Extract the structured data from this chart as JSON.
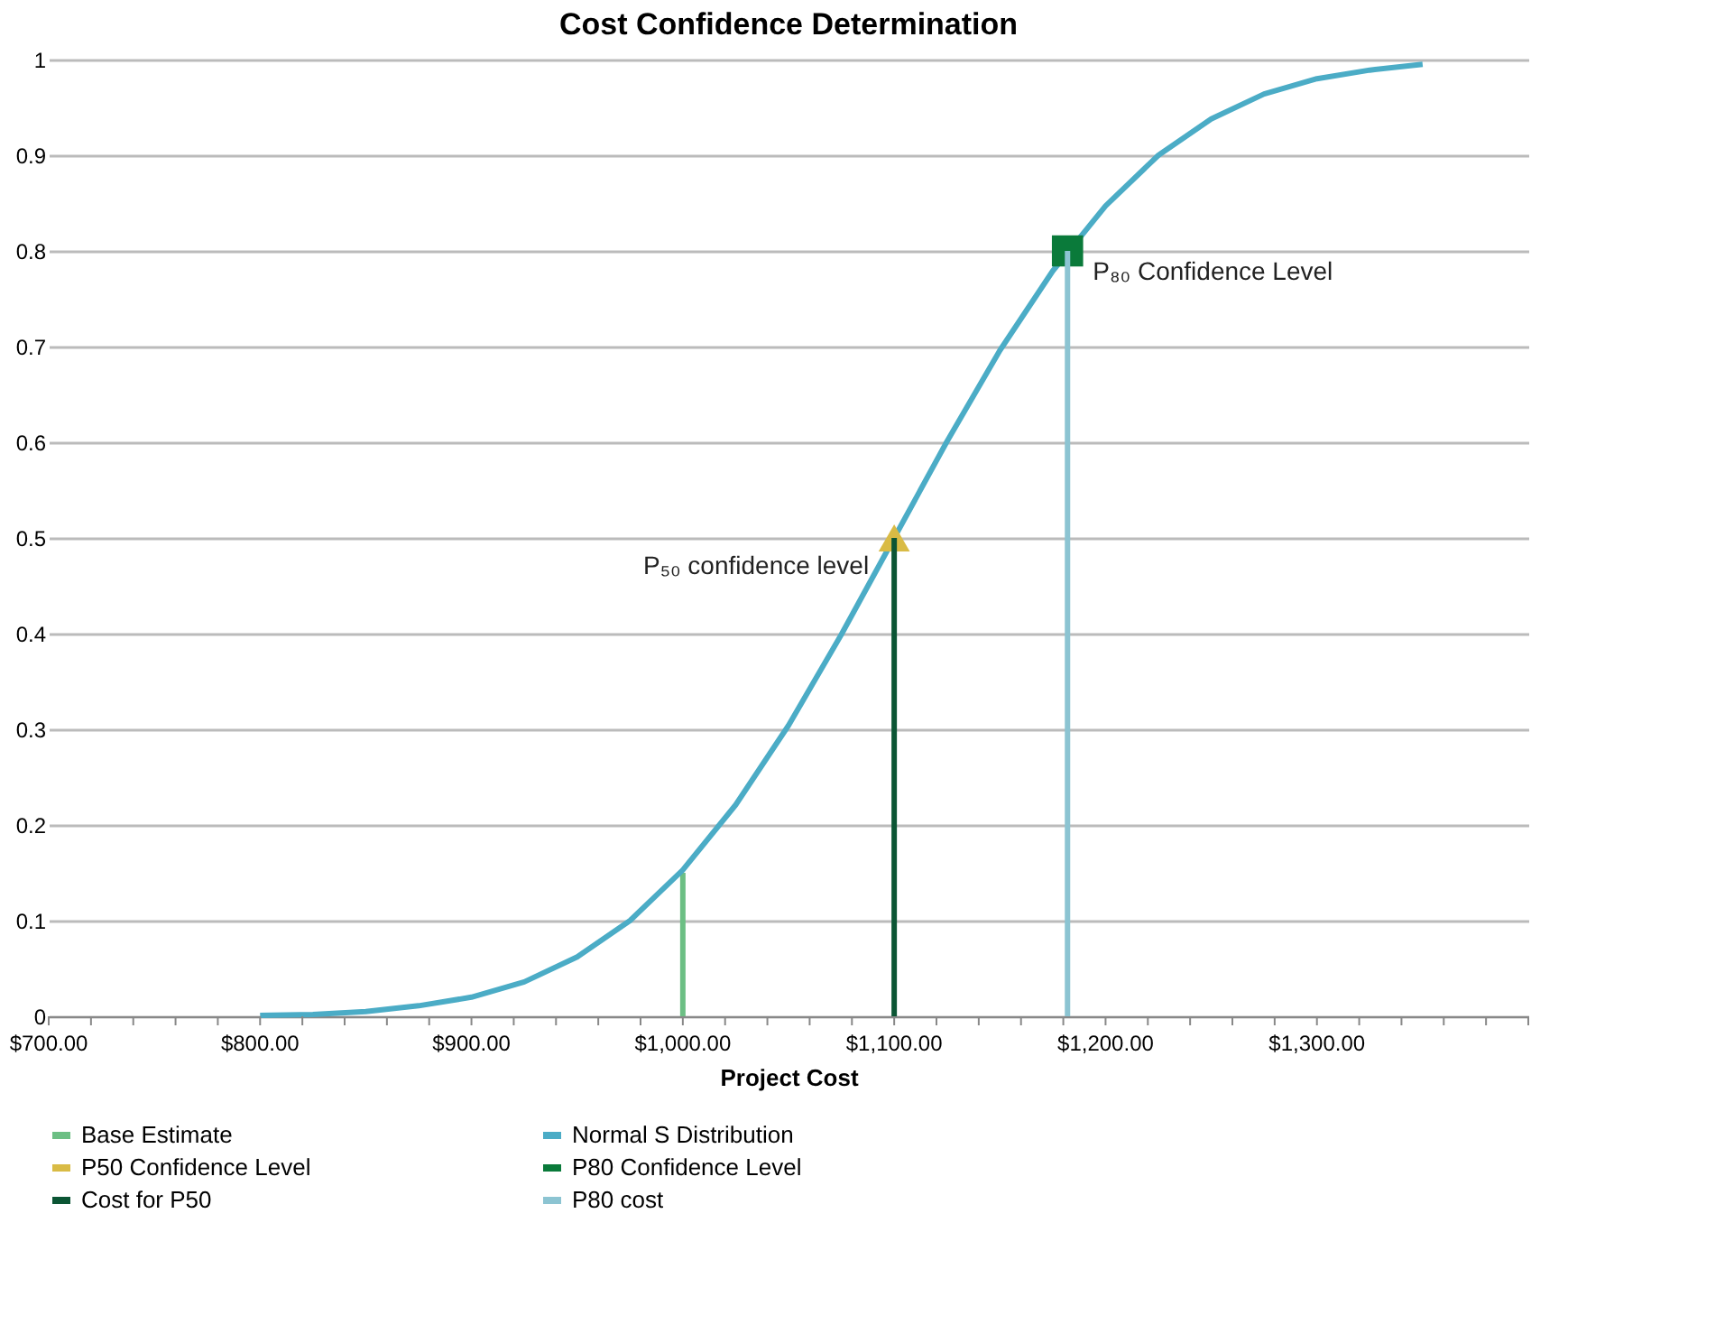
{
  "chart_data": {
    "type": "line",
    "title": "Cost Confidence Determination",
    "xlabel": "Project Cost",
    "xlim": [
      700,
      1400
    ],
    "ylim": [
      0,
      1
    ],
    "xticks": [
      {
        "value": 700,
        "label": "$700.00"
      },
      {
        "value": 720,
        "label": null
      },
      {
        "value": 740,
        "label": null
      },
      {
        "value": 760,
        "label": null
      },
      {
        "value": 780,
        "label": null
      },
      {
        "value": 800,
        "label": "$800.00"
      },
      {
        "value": 820,
        "label": null
      },
      {
        "value": 840,
        "label": null
      },
      {
        "value": 860,
        "label": null
      },
      {
        "value": 880,
        "label": null
      },
      {
        "value": 900,
        "label": "$900.00"
      },
      {
        "value": 920,
        "label": null
      },
      {
        "value": 940,
        "label": null
      },
      {
        "value": 960,
        "label": null
      },
      {
        "value": 980,
        "label": null
      },
      {
        "value": 1000,
        "label": "$1,000.00"
      },
      {
        "value": 1020,
        "label": null
      },
      {
        "value": 1040,
        "label": null
      },
      {
        "value": 1060,
        "label": null
      },
      {
        "value": 1080,
        "label": null
      },
      {
        "value": 1100,
        "label": "$1,100.00"
      },
      {
        "value": 1120,
        "label": null
      },
      {
        "value": 1140,
        "label": null
      },
      {
        "value": 1160,
        "label": null
      },
      {
        "value": 1180,
        "label": null
      },
      {
        "value": 1200,
        "label": "$1,200.00"
      },
      {
        "value": 1220,
        "label": null
      },
      {
        "value": 1240,
        "label": null
      },
      {
        "value": 1260,
        "label": null
      },
      {
        "value": 1280,
        "label": null
      },
      {
        "value": 1300,
        "label": "$1,300.00"
      },
      {
        "value": 1320,
        "label": null
      },
      {
        "value": 1340,
        "label": null
      },
      {
        "value": 1360,
        "label": null
      },
      {
        "value": 1380,
        "label": null
      },
      {
        "value": 1400,
        "label": null
      }
    ],
    "yticks": [
      0,
      0.1,
      0.2,
      0.3,
      0.4,
      0.5,
      0.6,
      0.7,
      0.8,
      0.9,
      1
    ],
    "grid": "y",
    "legend": "bottom",
    "line_style": "solid",
    "series": [
      {
        "name": "Base Estimate",
        "type": "line",
        "color": "#6cbf84",
        "marker": "none",
        "x": [
          1000,
          1000
        ],
        "values": [
          0,
          0.15
        ]
      },
      {
        "name": "Normal S Distribution",
        "type": "line",
        "color": "#4bacc6",
        "marker": "none",
        "x": [
          800,
          825,
          850,
          875,
          900,
          925,
          950,
          975,
          1000,
          1025,
          1050,
          1075,
          1100,
          1125,
          1150,
          1175,
          1200,
          1225,
          1250,
          1275,
          1300,
          1325,
          1350
        ],
        "values": [
          0.001,
          0.002,
          0.005,
          0.011,
          0.02,
          0.036,
          0.062,
          0.1,
          0.153,
          0.221,
          0.304,
          0.399,
          0.5,
          0.601,
          0.696,
          0.779,
          0.847,
          0.9,
          0.938,
          0.964,
          0.98,
          0.989,
          0.995
        ]
      },
      {
        "name": "P50 Confidence Level",
        "type": "scatter",
        "color": "#d9bb45",
        "marker": "triangle",
        "x": [
          1100
        ],
        "values": [
          0.5
        ]
      },
      {
        "name": "P80 Confidence Level",
        "type": "scatter",
        "color": "#0a7a3a",
        "marker": "square",
        "x": [
          1182
        ],
        "values": [
          0.8
        ]
      },
      {
        "name": "Cost for P50",
        "type": "line",
        "color": "#0b5534",
        "marker": "none",
        "x": [
          1100,
          1100
        ],
        "values": [
          0,
          0.5
        ]
      },
      {
        "name": "P80 cost",
        "type": "line",
        "color": "#8cc4d2",
        "marker": "none",
        "x": [
          1182,
          1182
        ],
        "values": [
          0,
          0.8
        ]
      }
    ],
    "annotations": [
      {
        "text": "P₅₀ confidence level",
        "x": 1100,
        "y": 0.5
      },
      {
        "text": "P₈₀ Confidence Level",
        "x": 1182,
        "y": 0.8
      }
    ]
  }
}
